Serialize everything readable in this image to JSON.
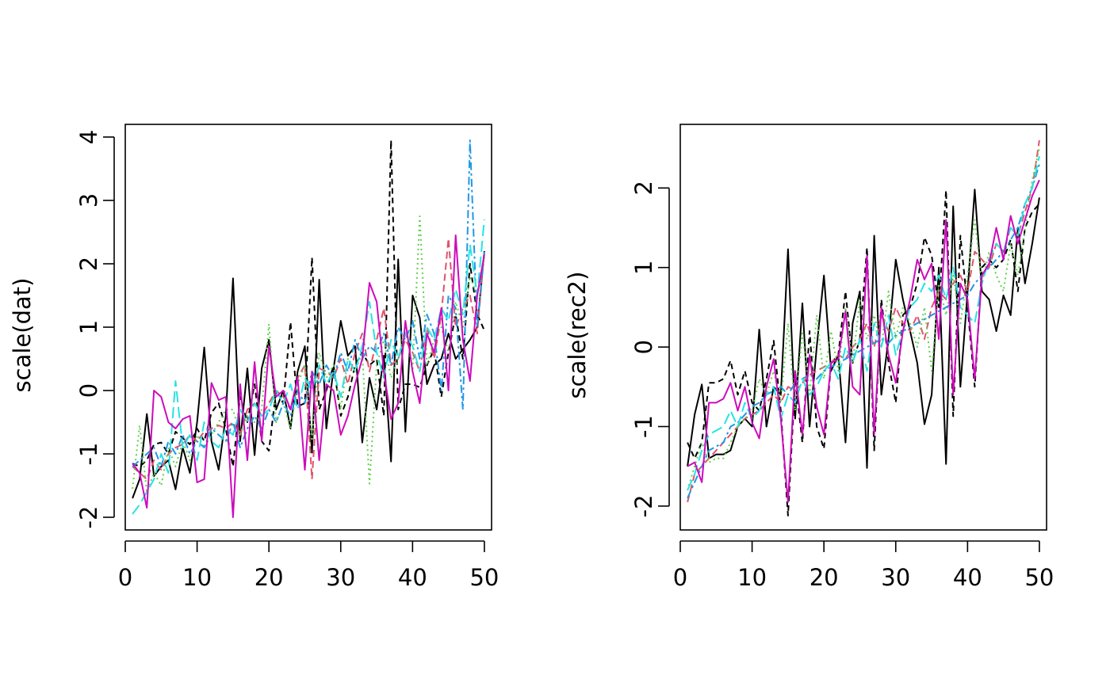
{
  "chart_data": [
    {
      "type": "line",
      "ylabel": "scale(dat)",
      "xlabel": "",
      "xlim": [
        0,
        51
      ],
      "ylim": [
        -2.2,
        4.2
      ],
      "x_ticks": [
        0,
        10,
        20,
        30,
        40,
        50
      ],
      "y_ticks": [
        -2,
        -1,
        0,
        1,
        2,
        3,
        4
      ],
      "grid": false,
      "x": [
        1,
        2,
        3,
        4,
        5,
        6,
        7,
        8,
        9,
        10,
        11,
        12,
        13,
        14,
        15,
        16,
        17,
        18,
        19,
        20,
        21,
        22,
        23,
        24,
        25,
        26,
        27,
        28,
        29,
        30,
        31,
        32,
        33,
        34,
        35,
        36,
        37,
        38,
        39,
        40,
        41,
        42,
        43,
        44,
        45,
        46,
        47,
        48,
        49,
        50
      ],
      "series": [
        {
          "color": "#000000",
          "dash": "",
          "values": [
            -1.7,
            -1.4,
            -0.37,
            -1.35,
            -1.2,
            -1.1,
            -1.56,
            -0.9,
            -1.3,
            -0.5,
            0.68,
            -0.8,
            -1.25,
            -0.4,
            1.77,
            -0.8,
            0.35,
            -1.02,
            0.35,
            0.8,
            -0.3,
            0.0,
            -0.6,
            0.3,
            0.7,
            -0.98,
            1.75,
            -0.6,
            0.35,
            1.1,
            0.55,
            0.7,
            -0.82,
            0.2,
            -0.3,
            0.55,
            -1.12,
            2.07,
            -0.65,
            1.5,
            1.15,
            0.1,
            0.4,
            0.5,
            0.9,
            0.5,
            0.65,
            0.8,
            1.0,
            2.2
          ]
        },
        {
          "color": "#000000",
          "dash": "7,5",
          "values": [
            -1.15,
            -1.2,
            -1.1,
            -0.85,
            -0.82,
            -1.0,
            -0.65,
            -0.75,
            -0.85,
            -0.6,
            -0.8,
            -0.35,
            -0.2,
            -0.6,
            -1.2,
            -0.1,
            -0.5,
            0.1,
            -0.8,
            -0.95,
            0.0,
            -0.2,
            1.08,
            -0.25,
            -0.2,
            2.1,
            -0.3,
            0.0,
            0.4,
            -0.4,
            -0.1,
            0.4,
            0.6,
            0.4,
            0.5,
            -0.4,
            3.95,
            -0.3,
            0.1,
            0.1,
            0.05,
            0.4,
            0.65,
            -0.1,
            0.6,
            1.2,
            0.5,
            2.0,
            1.2,
            0.95
          ]
        },
        {
          "color": "#df536b",
          "dash": "9,5",
          "values": [
            -1.2,
            -1.3,
            -1.4,
            -1.1,
            -1.25,
            -1.0,
            -0.9,
            -0.85,
            -0.7,
            -0.8,
            -0.65,
            -0.6,
            -0.55,
            -0.6,
            -0.5,
            -0.7,
            -0.3,
            -0.2,
            -0.4,
            -0.2,
            0.0,
            -0.1,
            -0.3,
            0.2,
            0.4,
            -1.4,
            0.35,
            0.3,
            0.2,
            0.5,
            0.1,
            0.6,
            0.9,
            0.3,
            0.8,
            1.3,
            0.4,
            0.5,
            0.8,
            0.6,
            0.3,
            1.0,
            0.5,
            1.2,
            2.4,
            1.0,
            1.3,
            1.5,
            0.9,
            2.2
          ]
        },
        {
          "color": "#61d04f",
          "dash": "2,4",
          "values": [
            -1.55,
            -0.55,
            -1.6,
            -1.3,
            -1.5,
            -0.9,
            -1.2,
            -0.8,
            -1.1,
            -0.7,
            -0.9,
            -0.7,
            -0.5,
            -0.3,
            -0.3,
            -0.7,
            -0.4,
            -0.5,
            -0.3,
            1.05,
            -0.5,
            -0.2,
            -0.6,
            0.1,
            0.4,
            -0.8,
            0.6,
            0.2,
            0.4,
            -0.3,
            0.5,
            0.3,
            0.6,
            -1.47,
            0.4,
            0.8,
            0.2,
            0.5,
            1.0,
            0.3,
            2.75,
            0.4,
            0.8,
            1.0,
            0.6,
            1.4,
            1.0,
            1.8,
            1.5,
            2.1
          ]
        },
        {
          "color": "#2297e6",
          "dash": "10,4,3,4",
          "values": [
            -1.2,
            -1.1,
            -1.0,
            -0.9,
            -1.2,
            -0.8,
            -1.0,
            -0.7,
            -1.0,
            -0.8,
            -0.9,
            -0.6,
            -0.7,
            -0.8,
            -0.5,
            -0.9,
            -0.6,
            -0.4,
            -0.6,
            -0.3,
            -0.5,
            -0.2,
            -0.4,
            0.0,
            -0.2,
            0.3,
            0.1,
            0.4,
            0.2,
            0.6,
            0.3,
            0.8,
            0.5,
            0.7,
            0.6,
            0.9,
            0.4,
            1.0,
            0.8,
            1.1,
            0.5,
            1.2,
            0.9,
            0.0,
            1.5,
            1.3,
            -0.3,
            3.95,
            1.0,
            2.2
          ]
        },
        {
          "color": "#28e2e5",
          "dash": "14,6",
          "values": [
            -1.95,
            -1.8,
            -1.6,
            -1.4,
            -1.0,
            -1.3,
            0.15,
            -0.9,
            -0.7,
            -1.1,
            -0.5,
            -0.8,
            -0.9,
            -0.6,
            -0.7,
            -0.3,
            -0.5,
            -0.2,
            -0.4,
            -0.3,
            0.0,
            -0.2,
            0.1,
            -0.3,
            0.2,
            0.0,
            0.4,
            0.1,
            0.3,
            -0.1,
            0.5,
            0.3,
            0.7,
            1.4,
            0.6,
            0.2,
            0.8,
            0.5,
            0.9,
            0.7,
            0.3,
            1.0,
            0.8,
            1.3,
            1.1,
            1.6,
            1.2,
            2.3,
            1.5,
            2.7
          ]
        },
        {
          "color": "#cd0bbc",
          "dash": "",
          "values": [
            -1.15,
            -1.3,
            -1.85,
            0.0,
            -0.1,
            -0.5,
            -0.6,
            -0.45,
            -0.4,
            -1.45,
            -1.4,
            0.12,
            -0.15,
            -0.1,
            -2.0,
            0.1,
            -1.1,
            0.45,
            -0.8,
            0.7,
            -0.1,
            0.0,
            -0.3,
            0.2,
            -1.25,
            0.3,
            -1.1,
            0.1,
            0.0,
            -0.7,
            -0.4,
            0.1,
            0.5,
            1.7,
            1.4,
            0.3,
            -0.45,
            -0.2,
            1.1,
            0.3,
            -0.2,
            0.9,
            0.6,
            1.3,
            0.0,
            2.45,
            0.8,
            0.15,
            1.5,
            2.15
          ]
        }
      ]
    },
    {
      "type": "line",
      "ylabel": "scale(rec2)",
      "xlabel": "",
      "xlim": [
        0,
        51
      ],
      "ylim": [
        -2.3,
        2.8
      ],
      "x_ticks": [
        0,
        10,
        20,
        30,
        40,
        50
      ],
      "y_ticks": [
        -2,
        -1,
        0,
        1,
        2
      ],
      "grid": false,
      "x": [
        1,
        2,
        3,
        4,
        5,
        6,
        7,
        8,
        9,
        10,
        11,
        12,
        13,
        14,
        15,
        16,
        17,
        18,
        19,
        20,
        21,
        22,
        23,
        24,
        25,
        26,
        27,
        28,
        29,
        30,
        31,
        32,
        33,
        34,
        35,
        36,
        37,
        38,
        39,
        40,
        41,
        42,
        43,
        44,
        45,
        46,
        47,
        48,
        49,
        50
      ],
      "series": [
        {
          "color": "#000000",
          "dash": "",
          "values": [
            -1.5,
            -0.85,
            -0.47,
            -1.4,
            -1.35,
            -1.35,
            -1.3,
            -1.0,
            -0.9,
            -1.0,
            0.22,
            -1.0,
            -0.5,
            -0.6,
            1.23,
            -0.9,
            0.55,
            -1.0,
            0.0,
            0.9,
            -0.3,
            -0.1,
            -1.2,
            0.3,
            0.7,
            -1.52,
            1.4,
            -0.6,
            0.1,
            1.1,
            0.6,
            0.2,
            -0.2,
            -0.97,
            -0.6,
            1.0,
            -1.47,
            1.77,
            -0.5,
            0.7,
            1.98,
            0.7,
            0.6,
            0.2,
            0.65,
            0.4,
            1.5,
            0.8,
            1.3,
            1.88
          ]
        },
        {
          "color": "#000000",
          "dash": "7,5",
          "values": [
            -1.2,
            -1.4,
            -1.2,
            -0.45,
            -0.45,
            -0.4,
            -0.17,
            -0.6,
            -0.3,
            -0.7,
            -0.8,
            -0.4,
            0.08,
            -0.8,
            -2.12,
            -0.4,
            -1.2,
            0.2,
            -1.0,
            -1.28,
            -0.2,
            -0.1,
            0.7,
            -0.2,
            0.1,
            1.25,
            -1.3,
            0.6,
            -0.2,
            -0.7,
            0.4,
            0.5,
            0.8,
            1.38,
            1.15,
            0.5,
            1.97,
            -0.87,
            1.4,
            0.5,
            -0.5,
            1.0,
            1.1,
            1.0,
            1.1,
            1.35,
            0.7,
            1.5,
            1.7,
            1.8
          ]
        },
        {
          "color": "#df536b",
          "dash": "9,5",
          "values": [
            -1.95,
            -1.6,
            -1.5,
            -1.4,
            -1.3,
            -1.2,
            -1.1,
            -1.0,
            -0.9,
            -0.85,
            -0.8,
            -0.7,
            -0.6,
            -0.7,
            -0.5,
            -0.55,
            -0.45,
            -0.35,
            -0.3,
            -0.25,
            -0.2,
            -0.1,
            -0.15,
            0.0,
            0.1,
            0.3,
            0.0,
            0.4,
            0.2,
            0.5,
            0.3,
            0.2,
            0.4,
            0.1,
            0.5,
            0.7,
            0.6,
            0.8,
            0.9,
            0.7,
            1.2,
            1.1,
            1.0,
            1.3,
            1.2,
            1.5,
            1.4,
            1.7,
            2.0,
            2.6
          ]
        },
        {
          "color": "#61d04f",
          "dash": "2,4",
          "values": [
            -1.8,
            -1.5,
            -1.2,
            -1.45,
            -1.4,
            -1.4,
            -1.2,
            -1.0,
            -0.9,
            -0.8,
            -0.4,
            -0.6,
            -0.3,
            -0.7,
            0.3,
            -0.8,
            0.2,
            -0.6,
            0.4,
            -0.4,
            0.2,
            -0.3,
            0.5,
            -0.2,
            0.6,
            0.1,
            0.4,
            0.0,
            0.7,
            0.1,
            0.5,
            0.3,
            0.0,
            0.5,
            -0.3,
            0.8,
            0.4,
            0.9,
            0.3,
            0.9,
            1.6,
            0.8,
            1.2,
            0.9,
            0.7,
            1.3,
            0.9,
            1.5,
            2.1,
            2.5
          ]
        },
        {
          "color": "#2297e6",
          "dash": "10,4,3,4",
          "values": [
            -1.9,
            -1.7,
            -1.5,
            -1.3,
            -1.25,
            -1.2,
            -1.0,
            -0.95,
            -0.85,
            -0.75,
            -0.7,
            -0.6,
            -0.55,
            -0.5,
            -0.6,
            -0.45,
            -0.4,
            -0.35,
            -0.4,
            -0.3,
            -0.25,
            -0.2,
            -0.15,
            -0.1,
            -0.05,
            0.0,
            0.05,
            0.1,
            0.05,
            0.15,
            0.2,
            0.25,
            0.3,
            0.35,
            0.4,
            0.45,
            0.5,
            0.55,
            0.6,
            0.65,
            0.8,
            0.9,
            1.0,
            1.1,
            1.2,
            1.35,
            1.5,
            1.8,
            2.0,
            2.3
          ]
        },
        {
          "color": "#28e2e5",
          "dash": "14,6",
          "values": [
            -1.8,
            -1.6,
            -1.3,
            -1.1,
            -1.05,
            -1.0,
            -0.8,
            -1.0,
            -0.7,
            -0.9,
            -0.8,
            -0.6,
            -0.5,
            -0.9,
            -0.6,
            -0.7,
            -0.4,
            -0.6,
            -0.5,
            -0.3,
            -0.2,
            -0.4,
            0.0,
            -0.2,
            0.1,
            -0.3,
            0.3,
            0.0,
            0.4,
            -0.1,
            0.2,
            0.5,
            0.6,
            0.8,
            0.7,
            0.9,
            0.6,
            1.0,
            0.5,
            0.4,
            0.3,
            0.8,
            1.1,
            1.3,
            1.2,
            1.5,
            1.4,
            1.8,
            2.0,
            2.4
          ]
        },
        {
          "color": "#cd0bbc",
          "dash": "",
          "values": [
            -1.5,
            -1.45,
            -1.7,
            -0.7,
            -0.7,
            -0.65,
            -0.45,
            -0.8,
            -0.5,
            -0.95,
            -1.15,
            -0.5,
            -0.15,
            -0.9,
            -1.95,
            -0.3,
            -1.1,
            -0.1,
            -0.75,
            -1.1,
            -0.2,
            -0.15,
            0.45,
            -0.5,
            -0.6,
            1.15,
            -1.1,
            0.5,
            -0.1,
            -0.45,
            0.2,
            0.6,
            1.1,
            0.85,
            1.05,
            0.1,
            1.6,
            -0.6,
            0.8,
            0.6,
            -0.4,
            0.9,
            1.05,
            1.5,
            1.1,
            1.65,
            1.3,
            1.6,
            1.9,
            2.1
          ]
        }
      ]
    }
  ]
}
